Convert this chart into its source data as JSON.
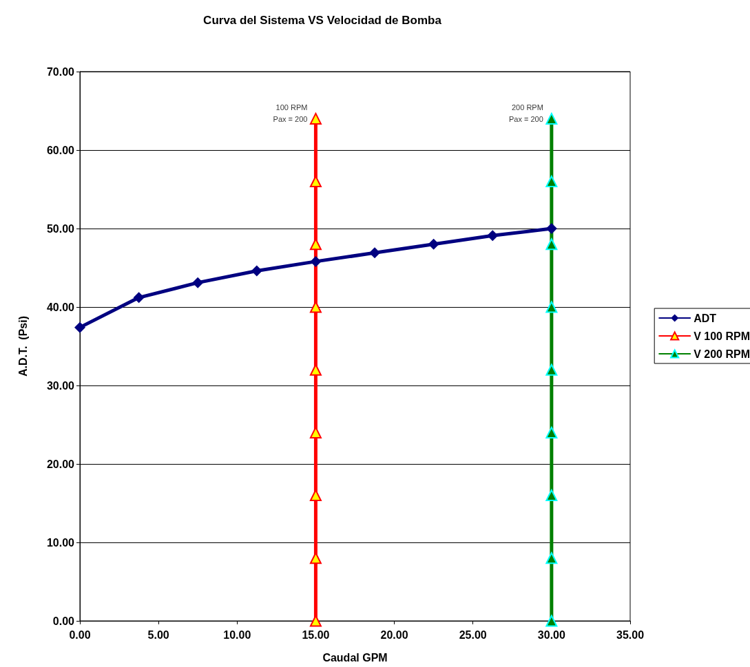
{
  "chart_data": {
    "type": "line",
    "title": "Curva del Sistema VS Velocidad de Bomba",
    "xlabel": "Caudal GPM",
    "ylabel": "A.D.T.  (Psi)",
    "xlim": [
      0,
      35
    ],
    "xticks": [
      {
        "value": 0,
        "label": "0.00"
      },
      {
        "value": 5,
        "label": "5.00"
      },
      {
        "value": 10,
        "label": "10.00"
      },
      {
        "value": 15,
        "label": "15.00"
      },
      {
        "value": 20,
        "label": "20.00"
      },
      {
        "value": 25,
        "label": "25.00"
      },
      {
        "value": 30,
        "label": "30.00"
      },
      {
        "value": 35,
        "label": "35.00"
      }
    ],
    "ylim": [
      0,
      70
    ],
    "yticks": [
      {
        "value": 0,
        "label": "0.00"
      },
      {
        "value": 10,
        "label": "10.00"
      },
      {
        "value": 20,
        "label": "20.00"
      },
      {
        "value": 30,
        "label": "30.00"
      },
      {
        "value": 40,
        "label": "40.00"
      },
      {
        "value": 50,
        "label": "50.00"
      },
      {
        "value": 60,
        "label": "60.00"
      },
      {
        "value": 70,
        "label": "70.00"
      }
    ],
    "grid": "y",
    "legend": "right",
    "line_style": "solid",
    "series": [
      {
        "name": "ADT",
        "color": "#000080",
        "marker": "diamond",
        "x": [
          0,
          3.75,
          7.5,
          11.25,
          15,
          18.75,
          22.5,
          26.25,
          30
        ],
        "values": [
          37.4,
          41.2,
          43.1,
          44.6,
          45.8,
          46.9,
          48.0,
          49.1,
          50.0
        ]
      },
      {
        "name": "V 100 RPM",
        "color": "#ff0000",
        "marker": "triangle",
        "x": [
          15,
          15,
          15,
          15,
          15,
          15,
          15,
          15,
          15
        ],
        "values": [
          0,
          8,
          16,
          24,
          32,
          40,
          48,
          56,
          64
        ]
      },
      {
        "name": "V 200 RPM",
        "color": "#008000",
        "marker": "triangle",
        "x": [
          30,
          30,
          30,
          30,
          30,
          30,
          30,
          30,
          30
        ],
        "values": [
          0,
          8,
          16,
          24,
          32,
          40,
          48,
          56,
          64
        ]
      }
    ],
    "annotations": [
      {
        "text": "100 RPM\nPax = 200",
        "x": 15,
        "y": 64
      },
      {
        "text": "200 RPM\nPax = 200",
        "x": 30,
        "y": 64
      }
    ]
  }
}
